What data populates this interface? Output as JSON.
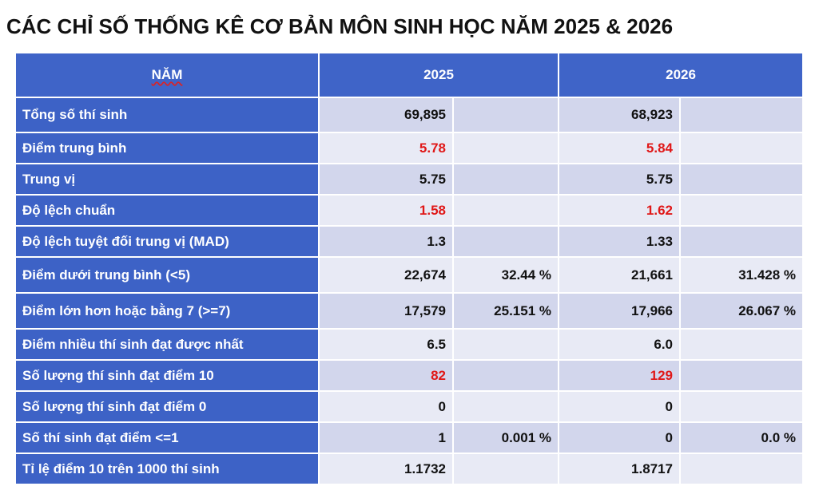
{
  "title": "CÁC CHỈ SỐ THỐNG KÊ CƠ BẢN MÔN SINH HỌC NĂM 2025 & 2026",
  "header": {
    "col_label": "NĂM",
    "col_2025": "2025",
    "col_2026": "2026"
  },
  "rows": [
    {
      "label": "Tổng số thí sinh",
      "v2025": "69,895",
      "p2025": "",
      "v2026": "68,923",
      "p2026": "",
      "highlight": false
    },
    {
      "label": "Điểm trung bình",
      "v2025": "5.78",
      "p2025": "",
      "v2026": "5.84",
      "p2026": "",
      "highlight": true
    },
    {
      "label": "Trung vị",
      "v2025": "5.75",
      "p2025": "",
      "v2026": "5.75",
      "p2026": "",
      "highlight": false
    },
    {
      "label": "Độ lệch chuẩn",
      "v2025": "1.58",
      "p2025": "",
      "v2026": "1.62",
      "p2026": "",
      "highlight": true
    },
    {
      "label": "Độ lệch tuyệt đối trung vị (MAD)",
      "v2025": "1.3",
      "p2025": "",
      "v2026": "1.33",
      "p2026": "",
      "highlight": false
    },
    {
      "label": "Điểm dưới trung bình (<5)",
      "v2025": "22,674",
      "p2025": "32.44 %",
      "v2026": "21,661",
      "p2026": "31.428 %",
      "highlight": false
    },
    {
      "label": "Điểm lớn hơn hoặc bằng 7 (>=7)",
      "v2025": "17,579",
      "p2025": "25.151 %",
      "v2026": "17,966",
      "p2026": "26.067 %",
      "highlight": false
    },
    {
      "label": "Điểm nhiều thí sinh đạt được nhất",
      "v2025": "6.5",
      "p2025": "",
      "v2026": "6.0",
      "p2026": "",
      "highlight": false
    },
    {
      "label": "Số lượng thí sinh đạt điểm 10",
      "v2025": "82",
      "p2025": "",
      "v2026": "129",
      "p2026": "",
      "highlight": true
    },
    {
      "label": "Số lượng thí sinh đạt điểm 0",
      "v2025": "0",
      "p2025": "",
      "v2026": "0",
      "p2026": "",
      "highlight": false
    },
    {
      "label": "Số thí sinh đạt điểm <=1",
      "v2025": "1",
      "p2025": "0.001 %",
      "v2026": "0",
      "p2026": "0.0 %",
      "highlight": false
    },
    {
      "label": "Tỉ lệ điểm 10 trên 1000 thí sinh",
      "v2025": "1.1732",
      "p2025": "",
      "v2026": "1.8717",
      "p2026": "",
      "highlight": false
    }
  ],
  "colors": {
    "header_bg": "#3f64c8",
    "label_bg": "#3d62c6",
    "row_odd_bg": "#d2d6ec",
    "row_even_bg": "#e8eaf5",
    "highlight_text": "#e01818"
  }
}
